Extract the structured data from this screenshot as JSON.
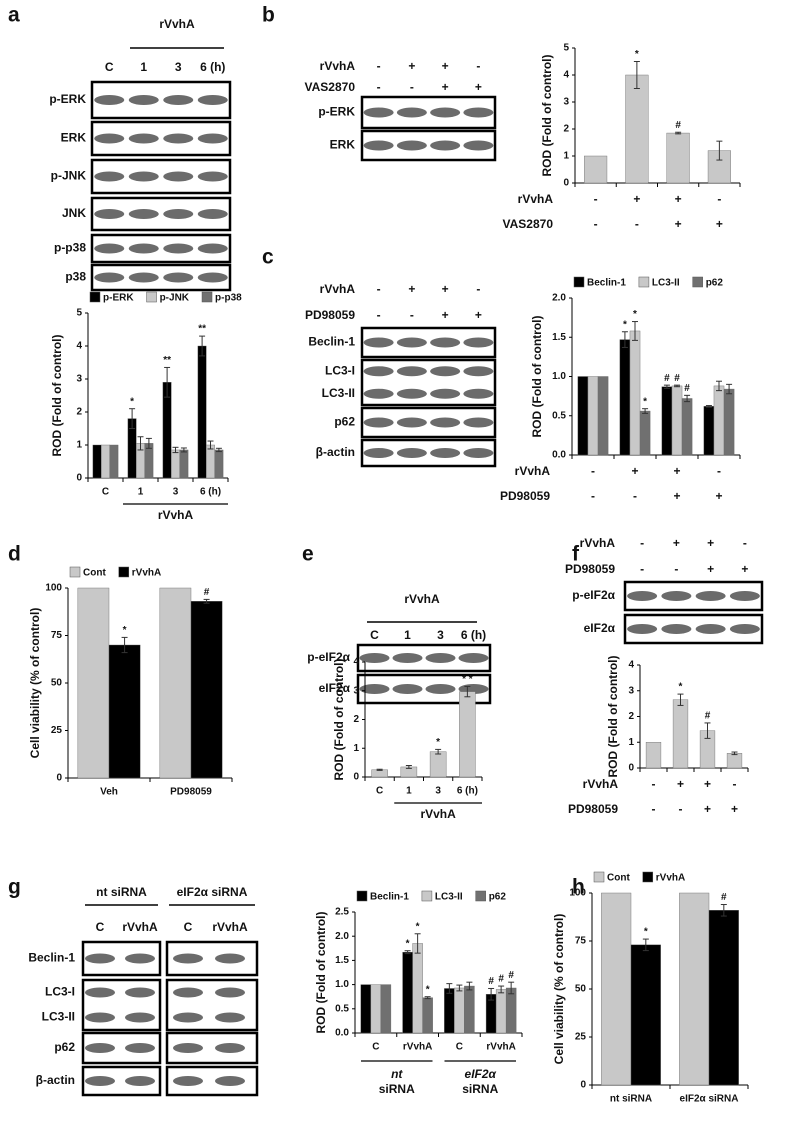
{
  "figure": {
    "panel_letters": [
      "a",
      "b",
      "c",
      "d",
      "e",
      "f",
      "g",
      "h"
    ]
  },
  "blots": {
    "a": {
      "header": "rVvhA",
      "lanes": [
        "C",
        "1",
        "3",
        "6 (h)"
      ],
      "bands": [
        [
          "p-ERK"
        ],
        [
          "ERK"
        ],
        [
          "p-JNK"
        ],
        [
          "JNK"
        ],
        [
          "p-p38"
        ],
        [
          "p38"
        ]
      ]
    },
    "b": {
      "bands": [
        [
          "p-ERK"
        ],
        [
          "ERK"
        ]
      ]
    },
    "c": {
      "bands": [
        [
          "Beclin-1"
        ],
        [
          "LC3-I",
          "LC3-II"
        ],
        [
          "p62"
        ],
        [
          "β-actin"
        ]
      ]
    },
    "e": {
      "header": "rVvhA",
      "lanes": [
        "C",
        "1",
        "3",
        "6 (h)"
      ],
      "bands": [
        [
          "p-eIF2α"
        ],
        [
          "eIF2α"
        ]
      ]
    },
    "f": {
      "bands": [
        [
          "p-eIF2α"
        ],
        [
          "eIF2α"
        ]
      ]
    },
    "g": {
      "headers": [
        "nt siRNA",
        "eIF2α siRNA"
      ],
      "lanes": [
        "C",
        "rVvhA",
        "C",
        "rVvhA"
      ],
      "bands": [
        [
          "Beclin-1"
        ],
        [
          "LC3-I",
          "LC3-II"
        ],
        [
          "p62"
        ],
        [
          "β-actin"
        ]
      ]
    }
  },
  "chart_data": [
    {
      "type": "bar",
      "y_label": "ROD (Fold of control)",
      "x_label": "rVvhA",
      "categories": [
        "C",
        "1",
        "3",
        "6 (h)"
      ],
      "ylim": [
        0,
        5
      ],
      "yticks": [
        0,
        1,
        2,
        3,
        4,
        5
      ],
      "series": [
        {
          "name": "p-ERK",
          "color": "#000000",
          "values": [
            1,
            1.8,
            2.9,
            4.0
          ],
          "errors": [
            null,
            0.3,
            0.45,
            0.3
          ],
          "annotations": [
            null,
            "*",
            "**",
            "**"
          ]
        },
        {
          "name": "p-JNK",
          "color": "#c8c8c8",
          "values": [
            1,
            1.05,
            0.85,
            1.0
          ],
          "errors": [
            null,
            0.2,
            0.08,
            0.12
          ],
          "annotations": [
            null,
            null,
            null,
            null
          ]
        },
        {
          "name": "p-p38",
          "color": "#707070",
          "values": [
            1,
            1.05,
            0.85,
            0.85
          ],
          "errors": [
            null,
            0.15,
            0.06,
            0.05
          ],
          "annotations": [
            null,
            null,
            null,
            null
          ]
        }
      ]
    },
    {
      "type": "bar",
      "y_label": "ROD (Fold of control)",
      "categories": [
        null,
        null,
        null,
        null
      ],
      "ylim": [
        0,
        5
      ],
      "yticks": [
        0,
        1,
        2,
        3,
        4,
        5
      ],
      "color": "#c8c8c8",
      "values": [
        1,
        4.0,
        1.85,
        1.2
      ],
      "errors": [
        null,
        0.5,
        0.03,
        0.35
      ],
      "annotations": [
        null,
        "*",
        "#",
        null
      ],
      "conditions": [
        {
          "name": "rVvhA",
          "signs": [
            "-",
            "+",
            "+",
            "-"
          ]
        },
        {
          "name": "VAS2870",
          "signs": [
            "-",
            "-",
            "+",
            "+"
          ]
        }
      ]
    },
    {
      "type": "bar",
      "y_label": "ROD (Fold of control)",
      "categories": [
        null,
        null,
        null,
        null
      ],
      "ylim": [
        0,
        2
      ],
      "yticks": [
        {
          "value": 0,
          "label": "0.0"
        },
        0.5,
        {
          "value": 1,
          "label": "1.0"
        },
        1.5,
        {
          "value": 2,
          "label": "2.0"
        }
      ],
      "series": [
        {
          "name": "Beclin-1",
          "color": "#000000",
          "values": [
            1,
            1.47,
            0.87,
            0.62
          ],
          "errors": [
            null,
            0.1,
            0.02,
            0.01
          ],
          "annotations": [
            null,
            "*",
            "#",
            null
          ]
        },
        {
          "name": "LC3-II",
          "color": "#c8c8c8",
          "values": [
            1,
            1.58,
            0.88,
            0.88
          ],
          "errors": [
            null,
            0.12,
            0.01,
            0.06
          ],
          "annotations": [
            null,
            "*",
            "#",
            null
          ]
        },
        {
          "name": "p62",
          "color": "#707070",
          "values": [
            1,
            0.56,
            0.72,
            0.84
          ],
          "errors": [
            null,
            0.03,
            0.04,
            0.06
          ],
          "annotations": [
            null,
            "*",
            "#",
            null
          ]
        }
      ],
      "conditions": [
        {
          "name": "rVvhA",
          "signs": [
            "-",
            "+",
            "+",
            "-"
          ]
        },
        {
          "name": "PD98059",
          "signs": [
            "-",
            "-",
            "+",
            "+"
          ]
        }
      ]
    },
    {
      "type": "bar",
      "y_label": "Cell viability (% of control)",
      "categories": [
        "Veh",
        "PD98059"
      ],
      "ylim": [
        0,
        100
      ],
      "yticks": [
        0,
        25,
        50,
        75,
        100
      ],
      "series": [
        {
          "name": "Cont",
          "color": "#c8c8c8",
          "values": [
            100,
            100
          ],
          "errors": [
            null,
            null
          ],
          "annotations": [
            null,
            null
          ]
        },
        {
          "name": "rVvhA",
          "color": "#000000",
          "values": [
            70,
            93
          ],
          "errors": [
            4,
            1
          ],
          "annotations": [
            "*",
            "#"
          ]
        }
      ]
    },
    {
      "type": "bar",
      "y_label": "ROD (Fold of control)",
      "x_label": "rVvhA",
      "categories": [
        "C",
        "1",
        "3",
        "6 (h)"
      ],
      "ylim": [
        0,
        4
      ],
      "yticks": [
        0,
        1,
        2,
        3,
        4
      ],
      "color": "#c8c8c8",
      "values": [
        0.25,
        0.35,
        0.88,
        2.97
      ],
      "errors": [
        0.02,
        0.05,
        0.08,
        0.18
      ],
      "annotations": [
        null,
        null,
        "*",
        "* *"
      ]
    },
    {
      "type": "bar",
      "y_label": "ROD (Fold of control)",
      "categories": [
        null,
        null,
        null,
        null
      ],
      "ylim": [
        0,
        4
      ],
      "yticks": [
        0,
        1,
        2,
        3,
        4
      ],
      "color": "#c8c8c8",
      "values": [
        1,
        2.65,
        1.45,
        0.57
      ],
      "errors": [
        null,
        0.22,
        0.3,
        0.05
      ],
      "annotations": [
        null,
        "*",
        "#",
        null
      ],
      "conditions": [
        {
          "name": "rVvhA",
          "signs": [
            "-",
            "+",
            "+",
            "-"
          ]
        },
        {
          "name": "PD98059",
          "signs": [
            "-",
            "-",
            "+",
            "+"
          ]
        }
      ]
    },
    {
      "type": "bar",
      "y_label": "ROD (Fold of control)",
      "categories": [
        "C",
        "rVvhA",
        "C",
        "rVvhA"
      ],
      "group_labels": [
        [
          "nt",
          "siRNA"
        ],
        [
          "eIF2α",
          "siRNA"
        ]
      ],
      "ylim": [
        0,
        2.5
      ],
      "yticks": [
        {
          "value": 0,
          "label": "0.0"
        },
        0.5,
        {
          "value": 1,
          "label": "1.0"
        },
        1.5,
        {
          "value": 2,
          "label": "2.0"
        },
        2.5
      ],
      "series": [
        {
          "name": "Beclin-1",
          "color": "#000000",
          "values": [
            1,
            1.67,
            0.92,
            0.8
          ],
          "errors": [
            null,
            0.03,
            0.1,
            0.12
          ],
          "annotations": [
            null,
            "*",
            null,
            "#"
          ]
        },
        {
          "name": "LC3-II",
          "color": "#c8c8c8",
          "values": [
            1,
            1.85,
            0.93,
            0.9
          ],
          "errors": [
            null,
            0.2,
            0.06,
            0.07
          ],
          "annotations": [
            null,
            "*",
            null,
            "#"
          ]
        },
        {
          "name": "p62",
          "color": "#707070",
          "values": [
            1,
            0.73,
            0.97,
            0.93
          ],
          "errors": [
            null,
            0.02,
            0.08,
            0.12
          ],
          "annotations": [
            null,
            "*",
            null,
            "#"
          ]
        }
      ]
    },
    {
      "type": "bar",
      "y_label": "Cell viability (% of control)",
      "categories": [
        "nt siRNA",
        "eIF2α siRNA"
      ],
      "ylim": [
        0,
        100
      ],
      "yticks": [
        0,
        25,
        50,
        75,
        100
      ],
      "series": [
        {
          "name": "Cont",
          "color": "#c8c8c8",
          "values": [
            100,
            100
          ],
          "errors": [
            null,
            null
          ],
          "annotations": [
            null,
            null
          ]
        },
        {
          "name": "rVvhA",
          "color": "#000000",
          "values": [
            73,
            91
          ],
          "errors": [
            3,
            3
          ],
          "annotations": [
            "*",
            "#"
          ]
        }
      ]
    }
  ]
}
